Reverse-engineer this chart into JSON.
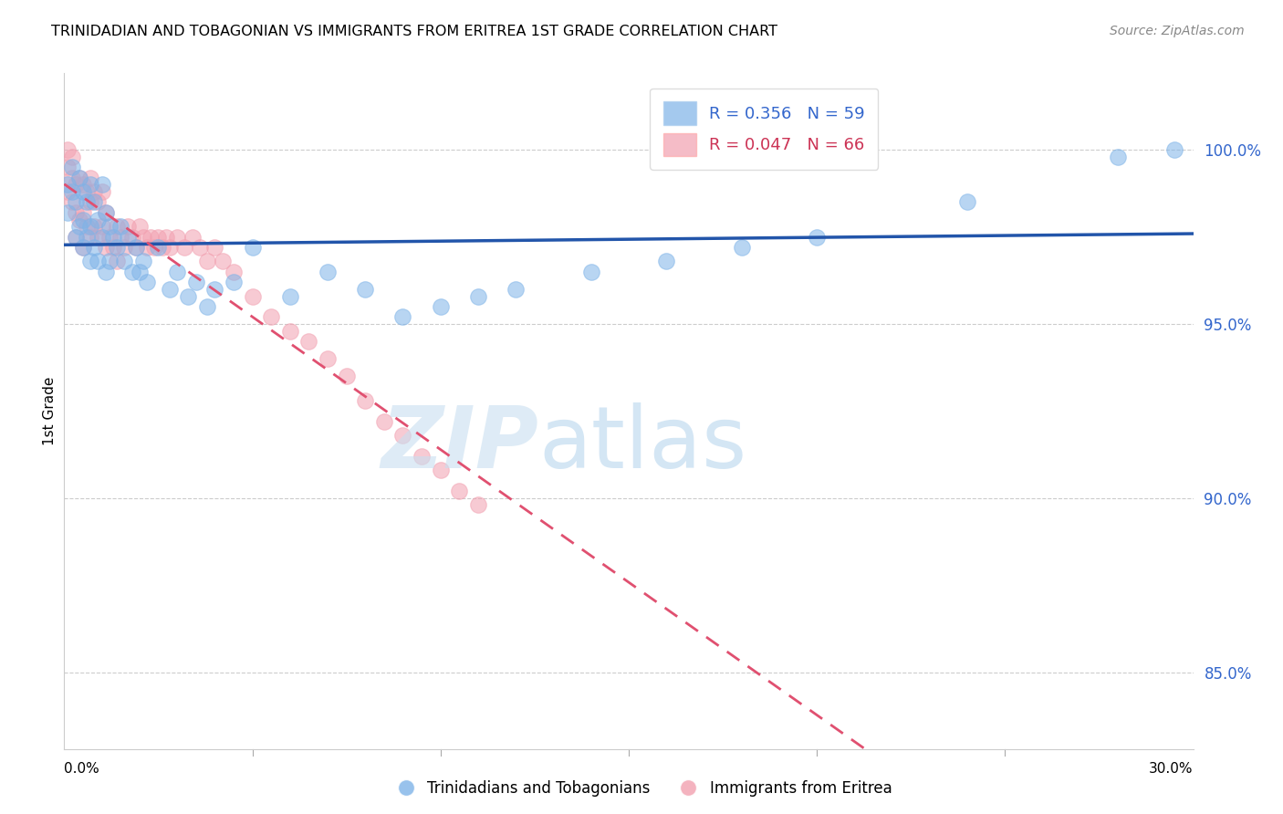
{
  "title": "TRINIDADIAN AND TOBAGONIAN VS IMMIGRANTS FROM ERITREA 1ST GRADE CORRELATION CHART",
  "source": "Source: ZipAtlas.com",
  "ylabel": "1st Grade",
  "ytick_labels": [
    "85.0%",
    "90.0%",
    "95.0%",
    "100.0%"
  ],
  "ytick_values": [
    0.85,
    0.9,
    0.95,
    1.0
  ],
  "xlim": [
    0.0,
    0.3
  ],
  "ylim": [
    0.828,
    1.022
  ],
  "legend_blue_r": "R = 0.356",
  "legend_blue_n": "N = 59",
  "legend_pink_r": "R = 0.047",
  "legend_pink_n": "N = 66",
  "blue_color": "#7EB3E8",
  "pink_color": "#F2A0B0",
  "blue_line_color": "#2255AA",
  "pink_line_color": "#E05070",
  "watermark_zip": "ZIP",
  "watermark_atlas": "atlas",
  "blue_scatter_x": [
    0.001,
    0.001,
    0.002,
    0.002,
    0.003,
    0.003,
    0.004,
    0.004,
    0.005,
    0.005,
    0.005,
    0.006,
    0.006,
    0.007,
    0.007,
    0.007,
    0.008,
    0.008,
    0.009,
    0.009,
    0.01,
    0.01,
    0.011,
    0.011,
    0.012,
    0.012,
    0.013,
    0.014,
    0.015,
    0.016,
    0.017,
    0.018,
    0.019,
    0.02,
    0.021,
    0.022,
    0.025,
    0.028,
    0.03,
    0.033,
    0.035,
    0.038,
    0.04,
    0.045,
    0.05,
    0.06,
    0.07,
    0.08,
    0.09,
    0.1,
    0.11,
    0.12,
    0.14,
    0.16,
    0.18,
    0.2,
    0.24,
    0.28,
    0.295
  ],
  "blue_scatter_y": [
    0.99,
    0.982,
    0.995,
    0.988,
    0.985,
    0.975,
    0.992,
    0.978,
    0.988,
    0.98,
    0.972,
    0.985,
    0.975,
    0.99,
    0.978,
    0.968,
    0.985,
    0.972,
    0.98,
    0.968,
    0.99,
    0.975,
    0.982,
    0.965,
    0.978,
    0.968,
    0.975,
    0.972,
    0.978,
    0.968,
    0.975,
    0.965,
    0.972,
    0.965,
    0.968,
    0.962,
    0.972,
    0.96,
    0.965,
    0.958,
    0.962,
    0.955,
    0.96,
    0.962,
    0.972,
    0.958,
    0.965,
    0.96,
    0.952,
    0.955,
    0.958,
    0.96,
    0.965,
    0.968,
    0.972,
    0.975,
    0.985,
    0.998,
    1.0
  ],
  "pink_scatter_x": [
    0.001,
    0.001,
    0.001,
    0.002,
    0.002,
    0.002,
    0.003,
    0.003,
    0.003,
    0.004,
    0.004,
    0.005,
    0.005,
    0.005,
    0.006,
    0.006,
    0.007,
    0.007,
    0.007,
    0.008,
    0.008,
    0.009,
    0.009,
    0.01,
    0.01,
    0.011,
    0.011,
    0.012,
    0.013,
    0.014,
    0.014,
    0.015,
    0.016,
    0.017,
    0.018,
    0.019,
    0.02,
    0.021,
    0.022,
    0.023,
    0.024,
    0.025,
    0.026,
    0.027,
    0.028,
    0.03,
    0.032,
    0.034,
    0.036,
    0.038,
    0.04,
    0.042,
    0.045,
    0.05,
    0.055,
    0.06,
    0.065,
    0.07,
    0.075,
    0.08,
    0.085,
    0.09,
    0.095,
    0.1,
    0.105,
    0.11
  ],
  "pink_scatter_y": [
    1.0,
    0.995,
    0.988,
    0.998,
    0.992,
    0.985,
    0.99,
    0.982,
    0.975,
    0.992,
    0.98,
    0.99,
    0.982,
    0.972,
    0.988,
    0.978,
    0.992,
    0.985,
    0.975,
    0.988,
    0.978,
    0.985,
    0.975,
    0.988,
    0.978,
    0.982,
    0.972,
    0.975,
    0.972,
    0.978,
    0.968,
    0.975,
    0.972,
    0.978,
    0.975,
    0.972,
    0.978,
    0.975,
    0.972,
    0.975,
    0.972,
    0.975,
    0.972,
    0.975,
    0.972,
    0.975,
    0.972,
    0.975,
    0.972,
    0.968,
    0.972,
    0.968,
    0.965,
    0.958,
    0.952,
    0.948,
    0.945,
    0.94,
    0.935,
    0.928,
    0.922,
    0.918,
    0.912,
    0.908,
    0.902,
    0.898
  ]
}
